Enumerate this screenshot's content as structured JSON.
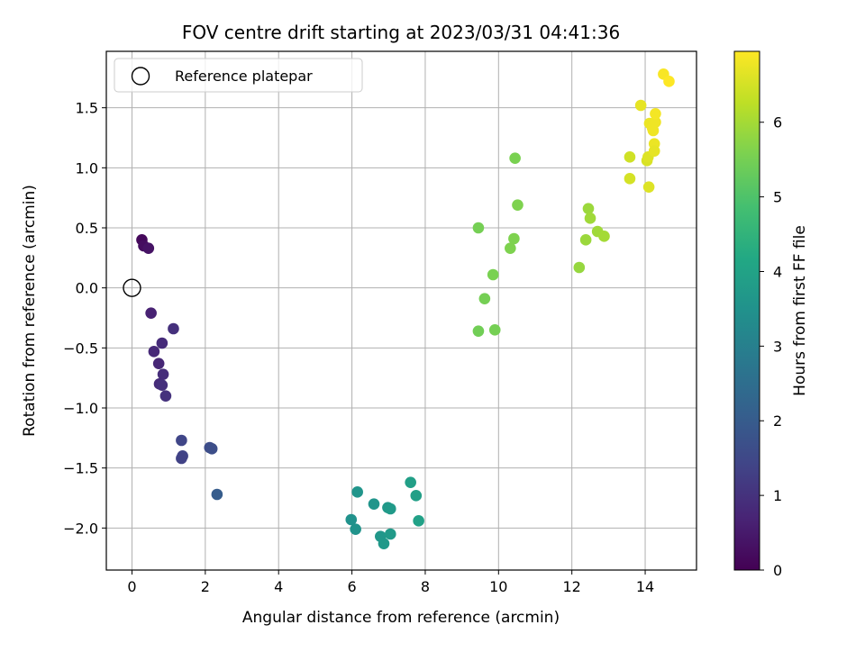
{
  "chart_data": {
    "type": "scatter",
    "title": "FOV centre drift starting at 2023/03/31 04:41:36",
    "xlabel": "Angular distance from reference (arcmin)",
    "ylabel": "Rotation from reference (arcmin)",
    "xlim": [
      -0.7,
      15.4
    ],
    "ylim": [
      -2.35,
      1.97
    ],
    "xticks": [
      0,
      2,
      4,
      6,
      8,
      10,
      12,
      14
    ],
    "yticks": [
      -2.0,
      -1.5,
      -1.0,
      -0.5,
      0.0,
      0.5,
      1.0,
      1.5
    ],
    "xtick_labels": [
      "0",
      "2",
      "4",
      "6",
      "8",
      "10",
      "12",
      "14"
    ],
    "ytick_labels": [
      "−2.0",
      "−1.5",
      "−1.0",
      "−0.5",
      "0.0",
      "0.5",
      "1.0",
      "1.5"
    ],
    "grid": true,
    "legend": {
      "placement": "upper-left",
      "entries": [
        "Reference platepar"
      ]
    },
    "reference_point": {
      "x": 0,
      "y": 0
    },
    "colorbar": {
      "label": "Hours from first FF file",
      "colormap": "viridis",
      "range": [
        0,
        6.95
      ],
      "ticks": [
        0,
        1,
        2,
        3,
        4,
        5,
        6
      ],
      "tick_labels": [
        "0",
        "1",
        "2",
        "3",
        "4",
        "5",
        "6"
      ]
    },
    "points": [
      {
        "x": 0.27,
        "y": 0.4,
        "hours": 0.15
      },
      {
        "x": 0.32,
        "y": 0.35,
        "hours": 0.25
      },
      {
        "x": 0.45,
        "y": 0.33,
        "hours": 0.35
      },
      {
        "x": 0.52,
        "y": -0.21,
        "hours": 0.65
      },
      {
        "x": 1.13,
        "y": -0.34,
        "hours": 0.95
      },
      {
        "x": 0.82,
        "y": -0.46,
        "hours": 0.85
      },
      {
        "x": 0.6,
        "y": -0.53,
        "hours": 0.8
      },
      {
        "x": 0.73,
        "y": -0.63,
        "hours": 0.75
      },
      {
        "x": 0.85,
        "y": -0.72,
        "hours": 0.9
      },
      {
        "x": 0.75,
        "y": -0.8,
        "hours": 0.85
      },
      {
        "x": 0.82,
        "y": -0.81,
        "hours": 0.95
      },
      {
        "x": 0.92,
        "y": -0.9,
        "hours": 1.0
      },
      {
        "x": 1.35,
        "y": -1.27,
        "hours": 1.45
      },
      {
        "x": 1.38,
        "y": -1.4,
        "hours": 1.4
      },
      {
        "x": 1.35,
        "y": -1.42,
        "hours": 1.35
      },
      {
        "x": 2.12,
        "y": -1.33,
        "hours": 1.6
      },
      {
        "x": 2.18,
        "y": -1.34,
        "hours": 1.65
      },
      {
        "x": 2.32,
        "y": -1.72,
        "hours": 2.0
      },
      {
        "x": 5.98,
        "y": -1.93,
        "hours": 3.5
      },
      {
        "x": 6.1,
        "y": -2.01,
        "hours": 3.55
      },
      {
        "x": 6.15,
        "y": -1.7,
        "hours": 3.6
      },
      {
        "x": 6.6,
        "y": -1.8,
        "hours": 3.6
      },
      {
        "x": 6.78,
        "y": -2.07,
        "hours": 3.65
      },
      {
        "x": 6.87,
        "y": -2.13,
        "hours": 3.7
      },
      {
        "x": 6.98,
        "y": -1.83,
        "hours": 3.7
      },
      {
        "x": 7.05,
        "y": -1.84,
        "hours": 3.75
      },
      {
        "x": 7.05,
        "y": -2.05,
        "hours": 3.75
      },
      {
        "x": 7.6,
        "y": -1.62,
        "hours": 3.9
      },
      {
        "x": 7.75,
        "y": -1.73,
        "hours": 3.9
      },
      {
        "x": 7.82,
        "y": -1.94,
        "hours": 3.95
      },
      {
        "x": 9.45,
        "y": 0.5,
        "hours": 5.5
      },
      {
        "x": 9.45,
        "y": -0.36,
        "hours": 5.45
      },
      {
        "x": 9.62,
        "y": -0.09,
        "hours": 5.5
      },
      {
        "x": 9.85,
        "y": 0.11,
        "hours": 5.55
      },
      {
        "x": 9.9,
        "y": -0.35,
        "hours": 5.5
      },
      {
        "x": 10.32,
        "y": 0.33,
        "hours": 5.6
      },
      {
        "x": 10.42,
        "y": 0.41,
        "hours": 5.6
      },
      {
        "x": 10.45,
        "y": 1.08,
        "hours": 5.55
      },
      {
        "x": 10.52,
        "y": 0.69,
        "hours": 5.6
      },
      {
        "x": 12.2,
        "y": 0.17,
        "hours": 5.85
      },
      {
        "x": 12.38,
        "y": 0.4,
        "hours": 5.9
      },
      {
        "x": 12.45,
        "y": 0.66,
        "hours": 5.9
      },
      {
        "x": 12.5,
        "y": 0.58,
        "hours": 5.95
      },
      {
        "x": 12.7,
        "y": 0.47,
        "hours": 5.95
      },
      {
        "x": 12.88,
        "y": 0.43,
        "hours": 6.0
      },
      {
        "x": 13.58,
        "y": 1.09,
        "hours": 6.45
      },
      {
        "x": 13.58,
        "y": 0.91,
        "hours": 6.5
      },
      {
        "x": 13.88,
        "y": 1.52,
        "hours": 6.7
      },
      {
        "x": 14.05,
        "y": 1.06,
        "hours": 6.55
      },
      {
        "x": 14.08,
        "y": 1.09,
        "hours": 6.6
      },
      {
        "x": 14.1,
        "y": 0.84,
        "hours": 6.6
      },
      {
        "x": 14.12,
        "y": 1.37,
        "hours": 6.75
      },
      {
        "x": 14.2,
        "y": 1.33,
        "hours": 6.8
      },
      {
        "x": 14.22,
        "y": 1.31,
        "hours": 6.8
      },
      {
        "x": 14.25,
        "y": 1.2,
        "hours": 6.75
      },
      {
        "x": 14.28,
        "y": 1.38,
        "hours": 6.8
      },
      {
        "x": 14.28,
        "y": 1.45,
        "hours": 6.85
      },
      {
        "x": 14.25,
        "y": 1.14,
        "hours": 6.7
      },
      {
        "x": 14.5,
        "y": 1.78,
        "hours": 6.9
      },
      {
        "x": 14.65,
        "y": 1.72,
        "hours": 6.95
      }
    ]
  }
}
